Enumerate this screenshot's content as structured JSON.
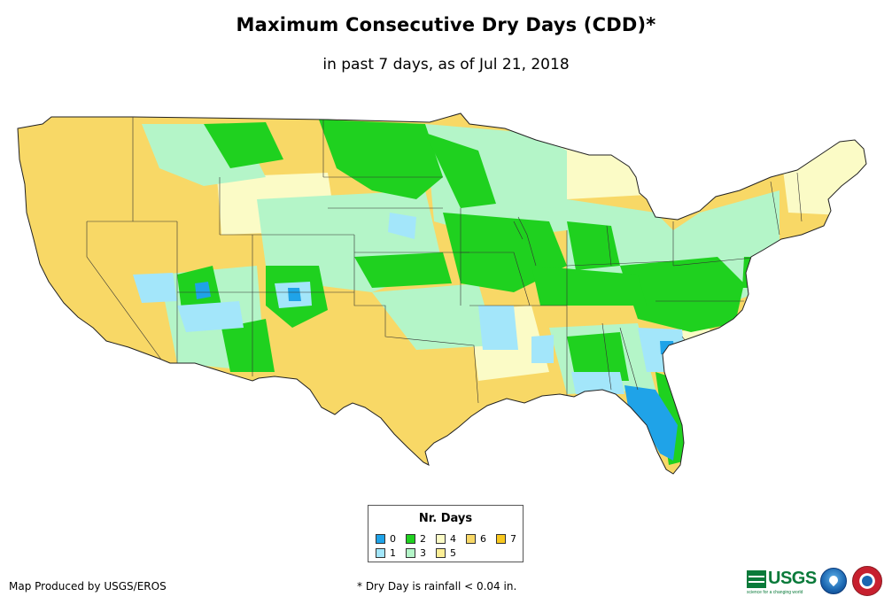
{
  "title": "Maximum Consecutive Dry Days (CDD)*",
  "subtitle": "in past 7 days, as of Jul 21, 2018",
  "legend": {
    "title": "Nr. Days",
    "items": [
      {
        "label": "0",
        "color": "#1fa3e8"
      },
      {
        "label": "1",
        "color": "#a3e6fa"
      },
      {
        "label": "2",
        "color": "#1fd11f"
      },
      {
        "label": "3",
        "color": "#b4f5c8"
      },
      {
        "label": "4",
        "color": "#fbfbc6"
      },
      {
        "label": "5",
        "color": "#fcee96"
      },
      {
        "label": "6",
        "color": "#f8d866"
      },
      {
        "label": "7",
        "color": "#f8c81e"
      }
    ]
  },
  "credit": "Map Produced by USGS/EROS",
  "footnote": "* Dry Day is rainfall < 0.04 in.",
  "logos": {
    "usgs": "USGS",
    "usgs_tagline": "science for a changing world"
  },
  "icons": [
    "usgs-logo",
    "noaa-logo",
    "nws-logo"
  ]
}
